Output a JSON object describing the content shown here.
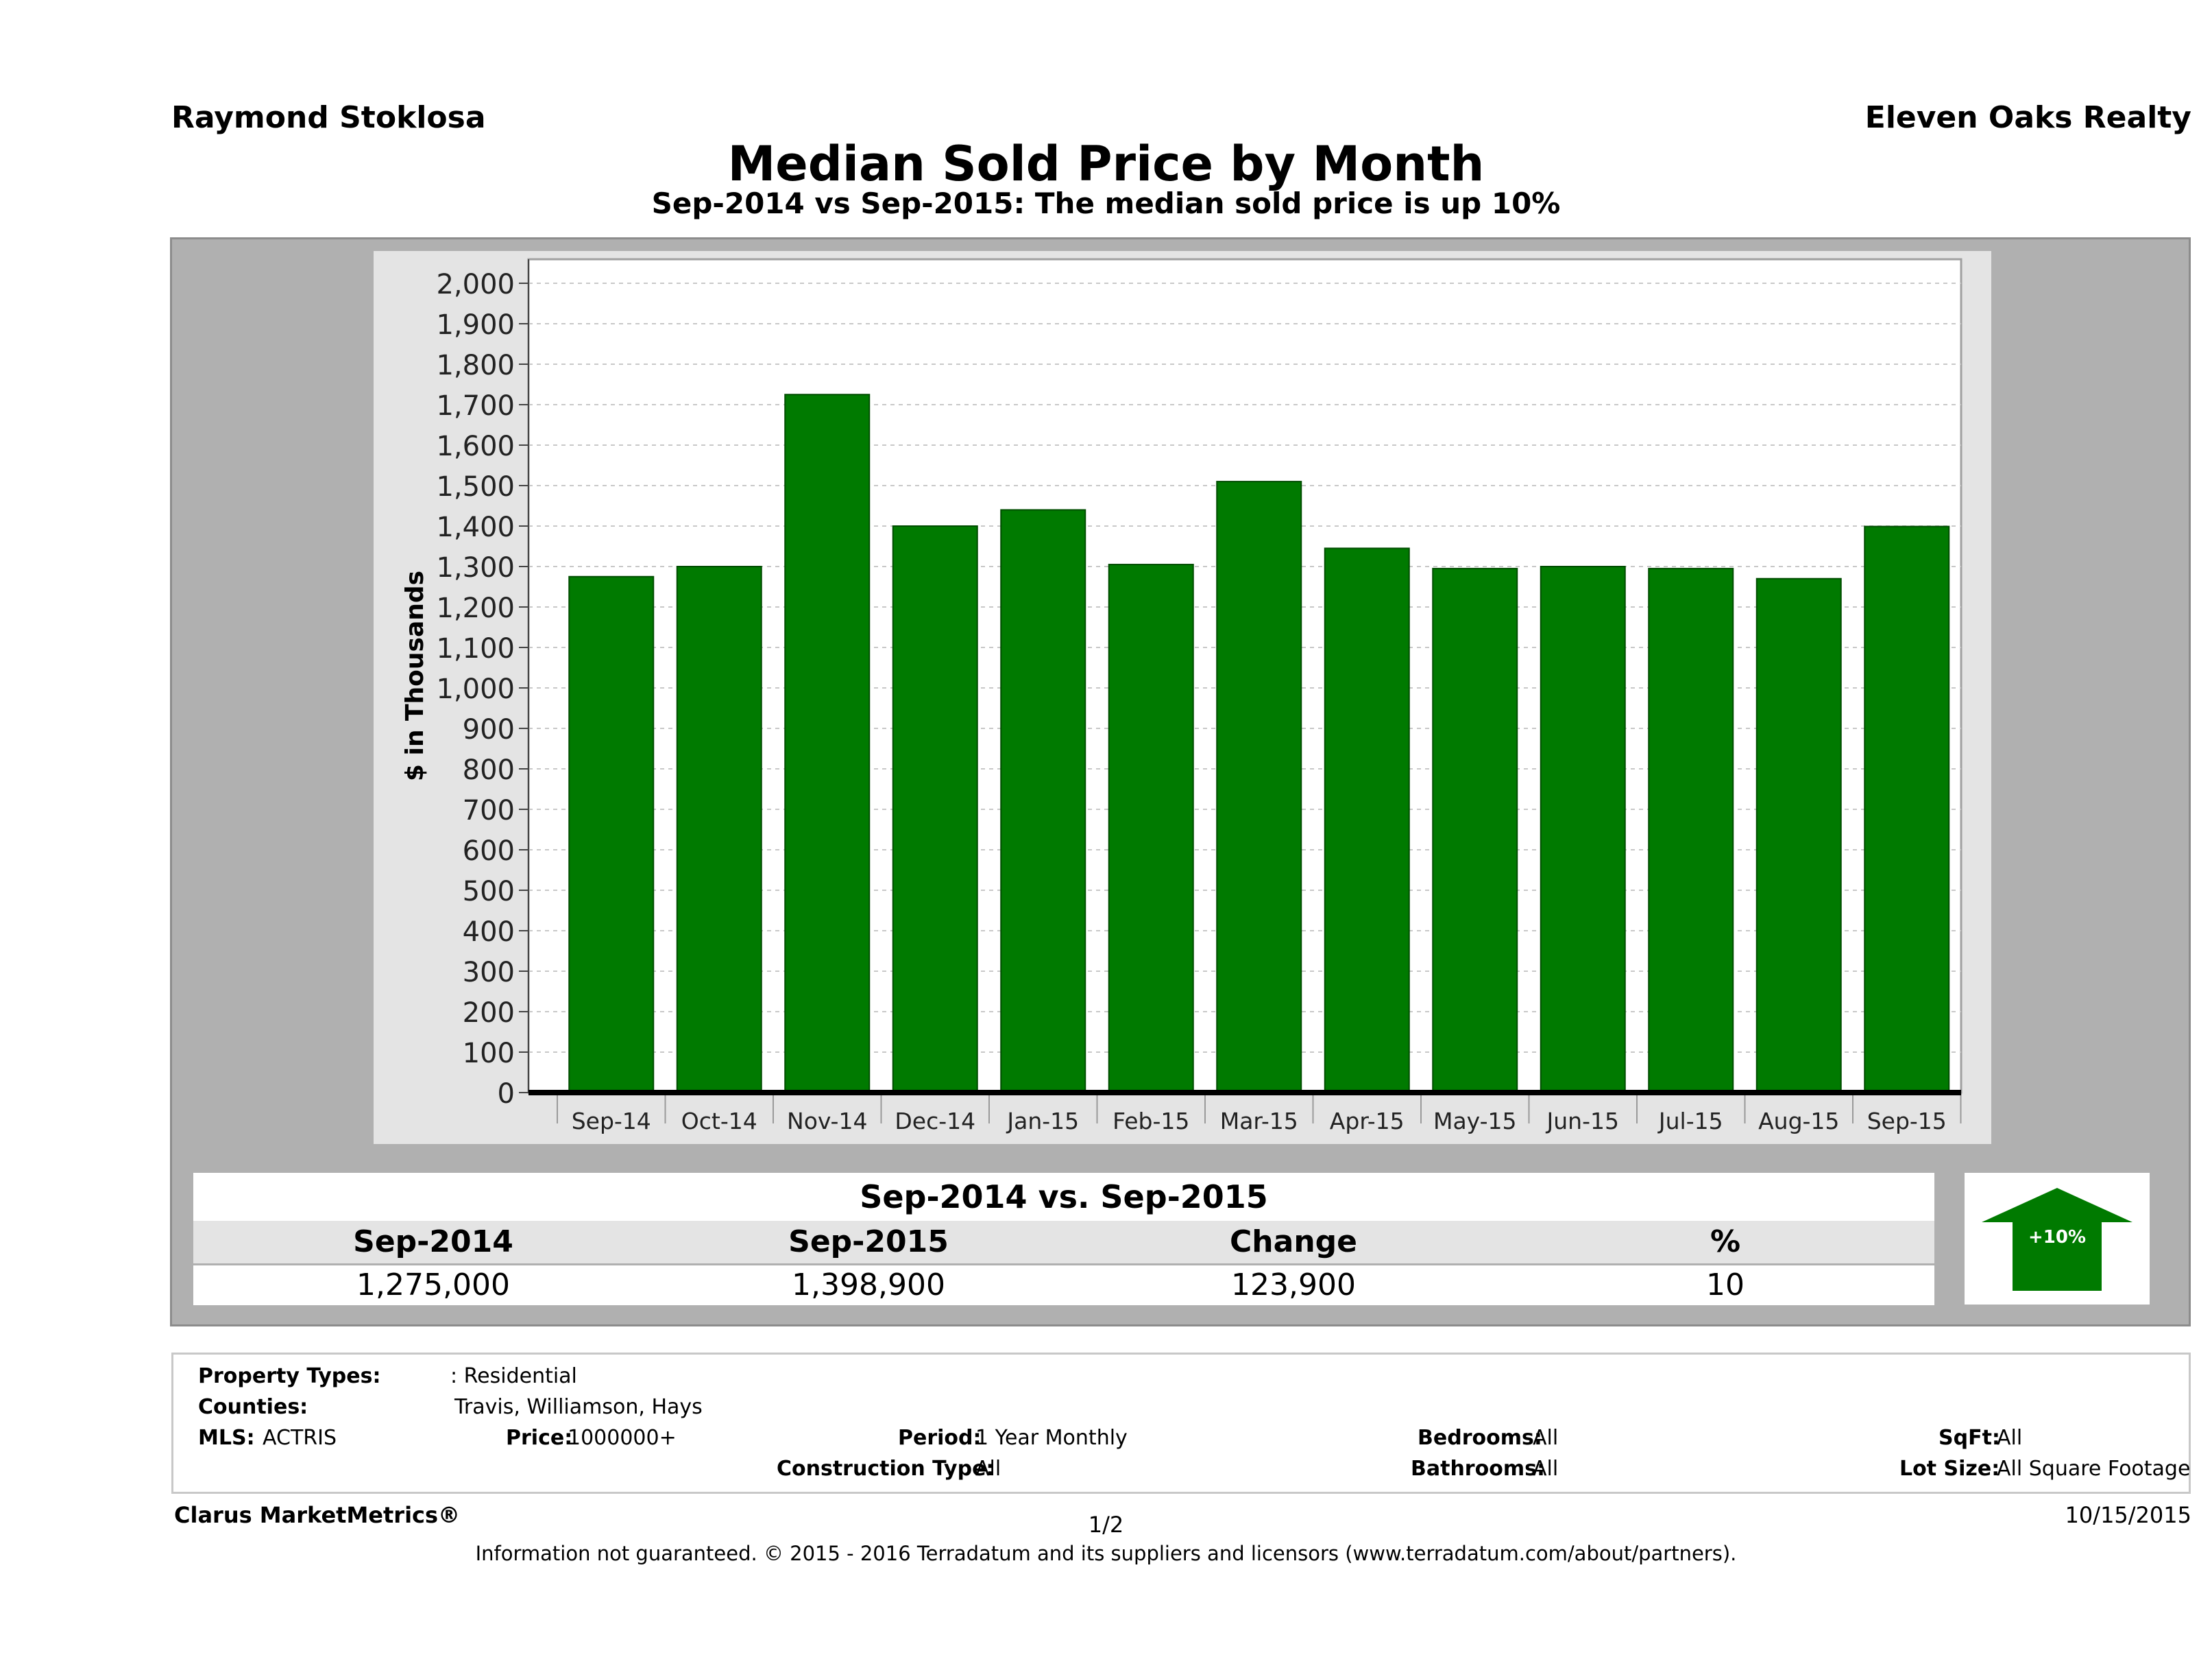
{
  "header": {
    "agent": "Raymond Stoklosa",
    "company": "Eleven Oaks Realty",
    "title": "Median Sold Price by Month",
    "subtitle": "Sep-2014 vs Sep-2015: The median sold price is up 10%"
  },
  "chart_data": {
    "type": "bar",
    "ylabel": "$ in Thousands",
    "ylim": [
      0,
      2000
    ],
    "ytick_step": 100,
    "grid": true,
    "bar_color": "#007a00",
    "categories": [
      "Sep-14",
      "Oct-14",
      "Nov-14",
      "Dec-14",
      "Jan-15",
      "Feb-15",
      "Mar-15",
      "Apr-15",
      "May-15",
      "Jun-15",
      "Jul-15",
      "Aug-15",
      "Sep-15"
    ],
    "values": [
      1275,
      1300,
      1725,
      1400,
      1440,
      1305,
      1510,
      1345,
      1295,
      1300,
      1295,
      1270,
      1399
    ]
  },
  "stats": {
    "heading": "Sep-2014 vs. Sep-2015",
    "labels": [
      "Sep-2014",
      "Sep-2015",
      "Change",
      "%"
    ],
    "values": [
      "1,275,000",
      "1,398,900",
      "123,900",
      "10"
    ],
    "badge": "+10%",
    "badge_color": "#007a00"
  },
  "filters": {
    "property_types_label": "Property Types:",
    "property_types_value": ": Residential",
    "counties_label": "Counties:",
    "counties_value": "Travis, Williamson, Hays",
    "mls_label": "MLS:",
    "mls_value": "ACTRIS",
    "price_label": "Price:",
    "price_value": "1000000+",
    "period_label": "Period:",
    "period_value": "1 Year Monthly",
    "construction_label": "Construction Type:",
    "construction_value": "All",
    "bedrooms_label": "Bedrooms:",
    "bedrooms_value": "All",
    "bathrooms_label": "Bathrooms:",
    "bathrooms_value": "All",
    "sqft_label": "SqFt:",
    "sqft_value": "All",
    "lot_label": "Lot Size:",
    "lot_value": "All Square Footage"
  },
  "footer": {
    "brand": "Clarus MarketMetrics®",
    "page": "1/2",
    "date": "10/15/2015",
    "disclaimer": "Information not guaranteed. © 2015 - 2016 Terradatum and its suppliers and licensors (www.terradatum.com/about/partners)."
  }
}
